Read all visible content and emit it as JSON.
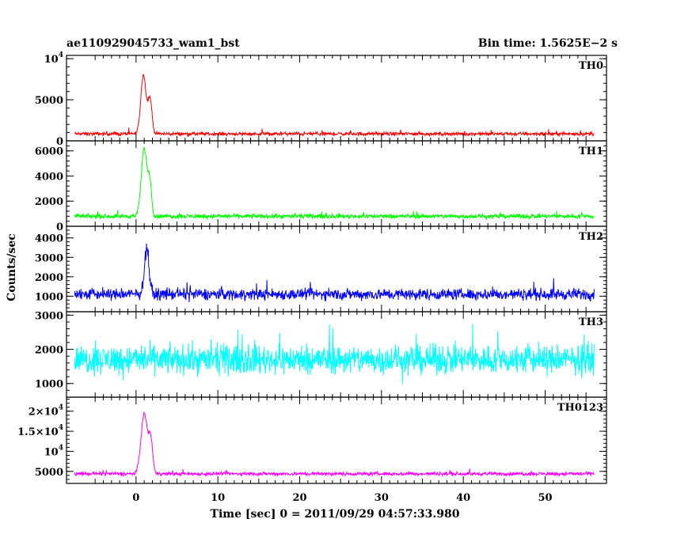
{
  "chart_data": {
    "type": "line",
    "title": "ae110929045733_wam1_bst",
    "bin_time_label": "Bin time: 1.5625E−2 s",
    "xlabel": "Time [sec] 0 = 2011/09/29 04:57:33.980",
    "ylabel": "Counts/sec",
    "xlim": [
      -8.5,
      57.5
    ],
    "x_ticks": [
      0,
      10,
      20,
      30,
      40,
      50
    ],
    "grid": false,
    "series": [
      {
        "name": "TH0",
        "color": "#ff0000",
        "ylim": [
          0,
          10400
        ],
        "y_ticks": [
          {
            "v": 0,
            "t": "0"
          },
          {
            "v": 5000,
            "t": "5000"
          },
          {
            "v": 10000,
            "t": "10",
            "sup": "4"
          }
        ],
        "baseline": 850,
        "noise": 320,
        "peaks": [
          {
            "t": 0.9,
            "a": 7200,
            "w": 0.45
          },
          {
            "t": 1.7,
            "a": 4200,
            "w": 0.35
          }
        ],
        "t_range": [
          -7.5,
          56
        ]
      },
      {
        "name": "TH1",
        "color": "#00ff00",
        "ylim": [
          0,
          6800
        ],
        "y_ticks": [
          {
            "v": 0,
            "t": "0"
          },
          {
            "v": 2000,
            "t": "2000"
          },
          {
            "v": 4000,
            "t": "4000"
          },
          {
            "v": 6000,
            "t": "6000"
          }
        ],
        "baseline": 800,
        "noise": 260,
        "peaks": [
          {
            "t": 1.0,
            "a": 5400,
            "w": 0.5
          },
          {
            "t": 1.7,
            "a": 2400,
            "w": 0.3
          }
        ],
        "t_range": [
          -7.5,
          56
        ]
      },
      {
        "name": "TH2",
        "color": "#0000ff",
        "ylim": [
          200,
          4600
        ],
        "y_ticks": [
          {
            "v": 1000,
            "t": "1000"
          },
          {
            "v": 2000,
            "t": "2000"
          },
          {
            "v": 3000,
            "t": "3000"
          },
          {
            "v": 4000,
            "t": "4000"
          }
        ],
        "baseline": 1100,
        "noise": 430,
        "peaks": [
          {
            "t": 1.3,
            "a": 2300,
            "w": 0.4
          }
        ],
        "t_range": [
          -7.5,
          56
        ]
      },
      {
        "name": "TH3",
        "color": "#00ffff",
        "ylim": [
          600,
          3100
        ],
        "y_ticks": [
          {
            "v": 1000,
            "t": "1000"
          },
          {
            "v": 2000,
            "t": "2000"
          },
          {
            "v": 3000,
            "t": "3000"
          }
        ],
        "baseline": 1700,
        "noise": 620,
        "peaks": [],
        "t_range": [
          -7.5,
          56
        ]
      },
      {
        "name": "TH0123",
        "color": "#ff00ff",
        "ylim": [
          2000,
          23500
        ],
        "y_ticks": [
          {
            "v": 5000,
            "t": "5000"
          },
          {
            "v": 10000,
            "t": "10",
            "sup": "4"
          },
          {
            "v": 15000,
            "t": "1.5×10",
            "sup": "4"
          },
          {
            "v": 20000,
            "t": "2×10",
            "sup": "4"
          }
        ],
        "baseline": 4400,
        "noise": 650,
        "peaks": [
          {
            "t": 1.0,
            "a": 15000,
            "w": 0.55
          },
          {
            "t": 1.8,
            "a": 8000,
            "w": 0.35
          }
        ],
        "t_range": [
          -7.5,
          56
        ]
      }
    ]
  }
}
